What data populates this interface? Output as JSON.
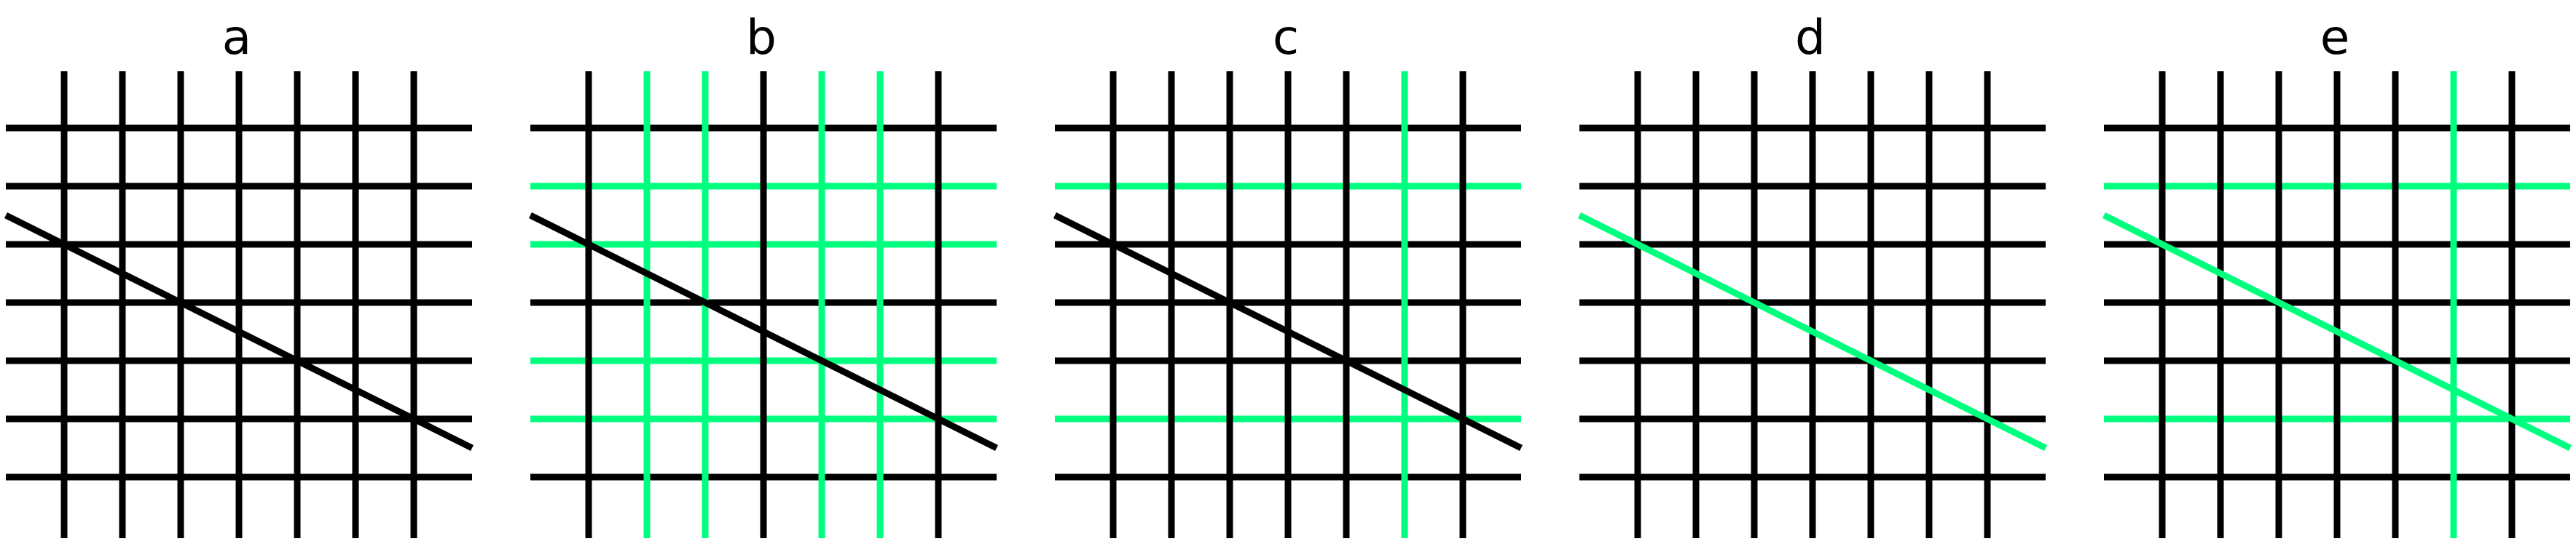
{
  "colors": {
    "black": "#000000",
    "green": "#00ff7f",
    "background": "#ffffff"
  },
  "panels": [
    {
      "label": "a",
      "green_vertical": [],
      "green_horizontal": [],
      "diagonal_color": "black"
    },
    {
      "label": "b",
      "green_vertical": [
        2,
        3,
        5,
        6
      ],
      "green_horizontal": [
        2,
        3,
        5,
        6
      ],
      "diagonal_color": "black"
    },
    {
      "label": "c",
      "green_vertical": [
        6
      ],
      "green_horizontal": [
        2,
        6
      ],
      "diagonal_color": "black"
    },
    {
      "label": "d",
      "green_vertical": [],
      "green_horizontal": [],
      "diagonal_color": "green"
    },
    {
      "label": "e",
      "green_vertical": [
        6
      ],
      "green_horizontal": [
        2,
        6
      ],
      "diagonal_color": "green"
    }
  ]
}
